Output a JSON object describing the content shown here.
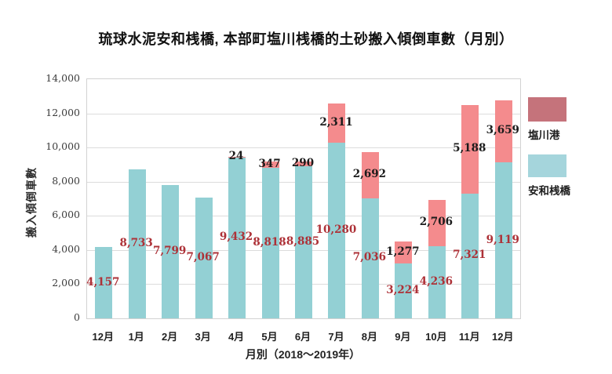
{
  "chart_data": {
    "type": "bar",
    "stacked": true,
    "title": "琉球水泥安和桟橋, 本部町塩川桟橋的土砂搬入傾倒車數（月別）",
    "xlabel": "月別（2018～2019年）",
    "ylabel": "搬入傾倒車數",
    "ylim": [
      0,
      14000
    ],
    "ytick_step": 2000,
    "grid": true,
    "legend_position": "right",
    "categories": [
      "12月",
      "1月",
      "2月",
      "3月",
      "4月",
      "5月",
      "6月",
      "7月",
      "8月",
      "9月",
      "10月",
      "11月",
      "12月"
    ],
    "series": [
      {
        "name": "安和桟橋",
        "color": "#93d0d4",
        "label_color": "#ad3137",
        "values": [
          4157,
          8733,
          7799,
          7067,
          9432,
          8818,
          8885,
          10280,
          7036,
          3224,
          4236,
          7321,
          9119
        ]
      },
      {
        "name": "塩川港",
        "color": "#f48b8d",
        "label_color": "#1b1b1b",
        "values": [
          null,
          null,
          null,
          null,
          24,
          347,
          290,
          2311,
          2692,
          1277,
          2706,
          5188,
          3659
        ]
      }
    ],
    "legend": [
      {
        "label": "塩川港",
        "color": "#c5737b"
      },
      {
        "label": "安和桟橋",
        "color": "#a5d5dc"
      }
    ]
  }
}
